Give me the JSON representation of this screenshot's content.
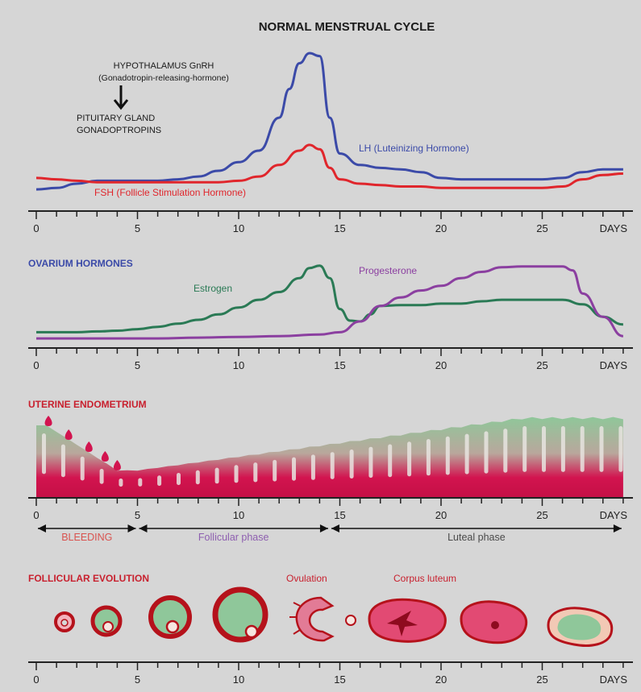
{
  "title": "NORMAL MENSTRUAL CYCLE",
  "axis": {
    "ticks": [
      "0",
      "5",
      "10",
      "15",
      "20",
      "25"
    ],
    "unit": "DAYS",
    "range": [
      0,
      29
    ]
  },
  "pituitary": {
    "hypothalamus_line1": "HYPOTHALAMUS GnRH",
    "hypothalamus_line2": "(Gonadotropin-releasing-hormone)",
    "pituitary_line1": "PITUITARY GLAND",
    "pituitary_line2": "GONADOPTROPINS",
    "lh_label": "LH (Luteinizing Hormone)",
    "fsh_label": "FSH (Follicle Stimulation Hormone)"
  },
  "ovarian": {
    "heading": "OVARIUM HORMONES",
    "estrogen_label": "Estrogen",
    "progesterone_label": "Progesterone"
  },
  "uterine": {
    "heading": "UTERINE ENDOMETRIUM",
    "phases": [
      {
        "label": "BLEEDING",
        "from": 0,
        "to": 5,
        "color": "#d9534f"
      },
      {
        "label": "Follicular phase",
        "from": 5,
        "to": 14.5,
        "color": "#8e5fb0"
      },
      {
        "label": "Luteal phase",
        "from": 14.5,
        "to": 29,
        "color": "#4a4a4a"
      }
    ]
  },
  "follicular": {
    "heading": "FOLLICULAR EVOLUTION",
    "ovulation_label": "Ovulation",
    "corpus_label": "Corpus luteum"
  },
  "colors": {
    "lh": "#3b4aa8",
    "fsh": "#e0262c",
    "estrogen": "#2a7a55",
    "progesterone": "#8b3fa0",
    "heading_blue": "#3b4aa8",
    "heading_red": "#c8202e",
    "endometrium_red": "#d2144f",
    "endometrium_green": "#8fc79a"
  },
  "chart_data": [
    {
      "type": "line",
      "title": "",
      "xlabel": "DAYS",
      "xlim": [
        0,
        29
      ],
      "series": [
        {
          "name": "LH (Luteinizing Hormone)",
          "x": [
            0,
            1,
            2,
            3,
            4,
            5,
            6,
            7,
            8,
            9,
            10,
            11,
            12,
            12.5,
            13,
            13.5,
            14,
            14.5,
            15,
            16,
            17,
            18,
            19,
            20,
            21,
            22,
            23,
            24,
            25,
            26,
            27,
            28,
            29
          ],
          "y": [
            0.05,
            0.06,
            0.09,
            0.11,
            0.11,
            0.11,
            0.11,
            0.12,
            0.14,
            0.18,
            0.24,
            0.32,
            0.55,
            0.75,
            0.93,
            1.0,
            0.98,
            0.55,
            0.3,
            0.22,
            0.2,
            0.19,
            0.17,
            0.13,
            0.12,
            0.12,
            0.12,
            0.12,
            0.12,
            0.13,
            0.17,
            0.19,
            0.19
          ]
        },
        {
          "name": "FSH (Follicle Stimulation Hormone)",
          "x": [
            0,
            1,
            2,
            3,
            4,
            5,
            6,
            7,
            8,
            9,
            10,
            11,
            12,
            13,
            13.5,
            14,
            14.5,
            15,
            16,
            17,
            18,
            19,
            20,
            21,
            22,
            23,
            24,
            25,
            26,
            27,
            28,
            29
          ],
          "y": [
            0.13,
            0.12,
            0.11,
            0.1,
            0.1,
            0.1,
            0.1,
            0.1,
            0.1,
            0.1,
            0.11,
            0.14,
            0.22,
            0.32,
            0.36,
            0.33,
            0.2,
            0.12,
            0.09,
            0.08,
            0.07,
            0.07,
            0.06,
            0.06,
            0.06,
            0.06,
            0.06,
            0.06,
            0.07,
            0.12,
            0.15,
            0.16
          ]
        }
      ]
    },
    {
      "type": "line",
      "title": "",
      "xlabel": "DAYS",
      "xlim": [
        0,
        29
      ],
      "series": [
        {
          "name": "Estrogen",
          "x": [
            0,
            1,
            2,
            3,
            4,
            5,
            6,
            7,
            8,
            9,
            10,
            11,
            12,
            13,
            13.5,
            14,
            14.5,
            15,
            15.5,
            16,
            16.5,
            17,
            18,
            19,
            20,
            21,
            22,
            23,
            24,
            25,
            26,
            27,
            28,
            29
          ],
          "y": [
            0.1,
            0.1,
            0.1,
            0.11,
            0.12,
            0.14,
            0.17,
            0.21,
            0.26,
            0.33,
            0.42,
            0.52,
            0.62,
            0.8,
            0.93,
            0.96,
            0.8,
            0.4,
            0.25,
            0.24,
            0.33,
            0.44,
            0.45,
            0.45,
            0.47,
            0.47,
            0.5,
            0.52,
            0.52,
            0.52,
            0.52,
            0.46,
            0.3,
            0.2
          ]
        },
        {
          "name": "Progesterone",
          "x": [
            0,
            2,
            4,
            6,
            8,
            10,
            12,
            14,
            15,
            16,
            17,
            18,
            19,
            20,
            21,
            22,
            23,
            24,
            25,
            26,
            26.5,
            27,
            28,
            29
          ],
          "y": [
            0.02,
            0.02,
            0.02,
            0.02,
            0.03,
            0.04,
            0.05,
            0.07,
            0.1,
            0.24,
            0.44,
            0.55,
            0.64,
            0.7,
            0.8,
            0.88,
            0.94,
            0.95,
            0.95,
            0.95,
            0.9,
            0.6,
            0.3,
            0.05
          ]
        }
      ]
    }
  ]
}
